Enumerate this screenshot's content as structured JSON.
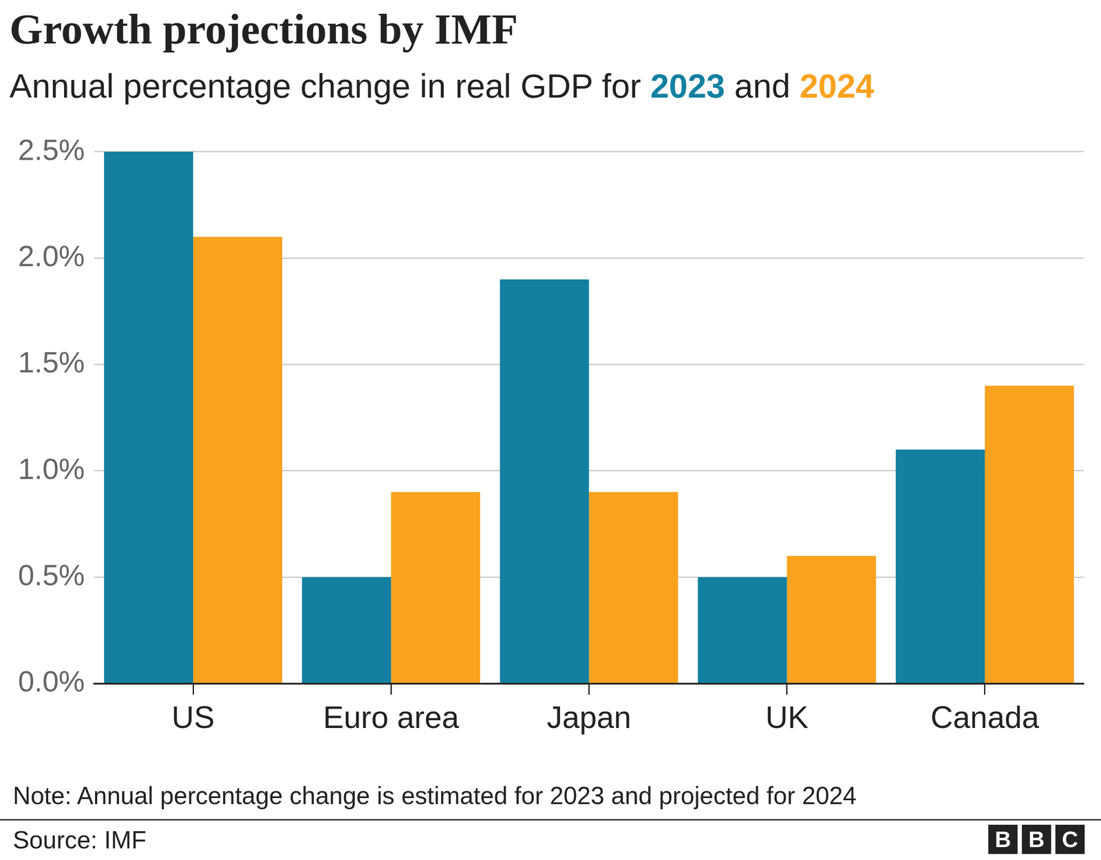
{
  "chart_data": {
    "type": "bar",
    "title": "Growth projections by IMF",
    "subtitle": "Annual percentage change in real GDP for 2023 and 2024",
    "categories": [
      "US",
      "Euro area",
      "Japan",
      "UK",
      "Canada"
    ],
    "series": [
      {
        "name": "2023",
        "color": "#1380a1",
        "values": [
          2.5,
          0.5,
          1.9,
          0.5,
          1.1
        ]
      },
      {
        "name": "2024",
        "color": "#faa21f",
        "values": [
          2.1,
          0.9,
          0.9,
          0.6,
          1.4
        ]
      }
    ],
    "ylim": [
      0,
      2.5
    ],
    "yticks": [
      {
        "value": 0,
        "label": "0.0%"
      },
      {
        "value": 0.5,
        "label": "0.5%"
      },
      {
        "value": 1,
        "label": "1.0%"
      },
      {
        "value": 1.5,
        "label": "1.5%"
      },
      {
        "value": 2,
        "label": "2.0%"
      },
      {
        "value": 2.5,
        "label": "2.5%"
      }
    ],
    "grid": true,
    "note": "Note: Annual percentage change is estimated for 2023 and projected for 2024",
    "source": "Source: IMF",
    "branding": "BBC"
  }
}
